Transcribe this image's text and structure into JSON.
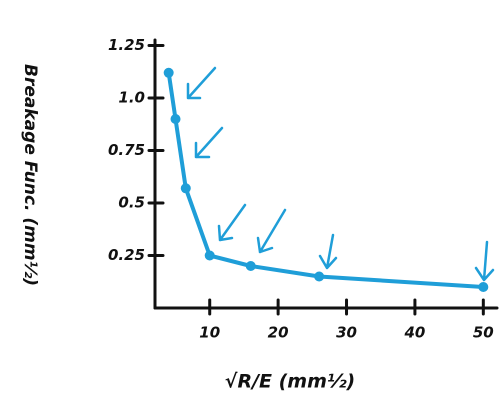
{
  "chart_data": {
    "type": "line",
    "y_label": "Breakage Func. (mm½)",
    "x_label": "√R/E (mm½)",
    "x": [
      4,
      5,
      6.5,
      10,
      16,
      26,
      50
    ],
    "series": [
      {
        "color": "#1f9ed8",
        "values": [
          1.12,
          0.9,
          0.57,
          0.25,
          0.2,
          0.15,
          0.1
        ]
      }
    ],
    "xlim": [
      2,
      52
    ],
    "ylim": [
      0,
      1.3
    ],
    "xticks": [
      10,
      20,
      30,
      40,
      50
    ],
    "yticks": [
      0.25,
      0.5,
      0.75,
      {
        "value": 1,
        "label": "1.0"
      },
      1.25
    ]
  }
}
